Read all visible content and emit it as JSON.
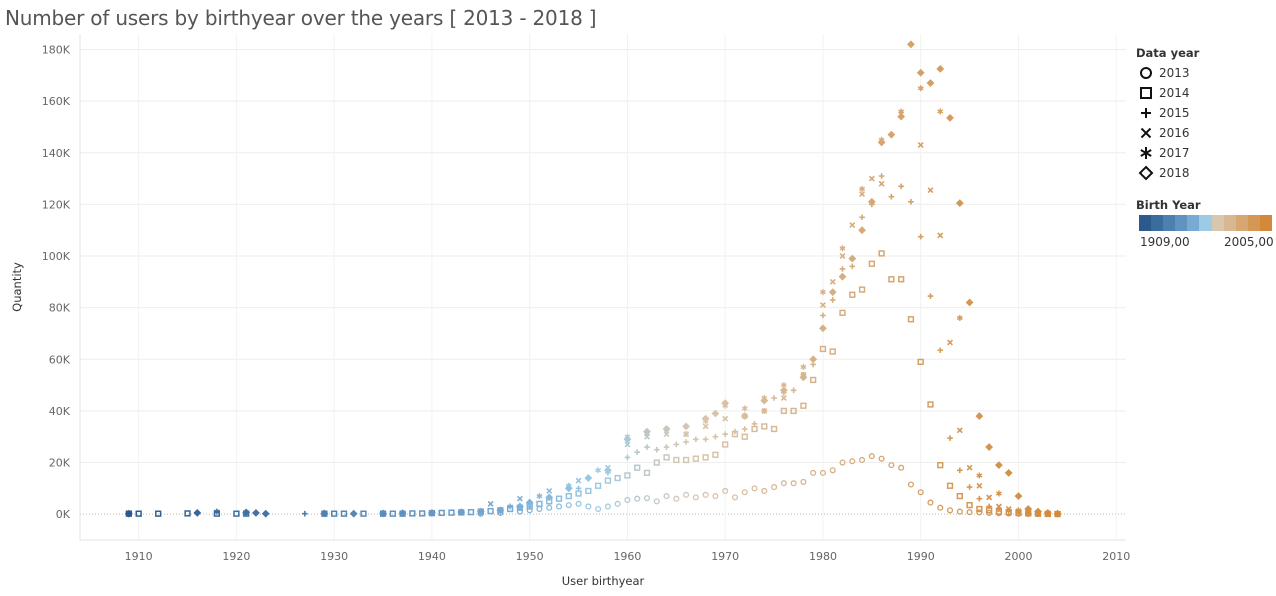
{
  "title": "Number of users by birthyear over the years [ 2013 - 2018 ]",
  "legend": {
    "shape_title": "Data year",
    "shapes": [
      {
        "label": "2013",
        "shape": "circle"
      },
      {
        "label": "2014",
        "shape": "square"
      },
      {
        "label": "2015",
        "shape": "plus"
      },
      {
        "label": "2016",
        "shape": "cross"
      },
      {
        "label": "2017",
        "shape": "asterisk"
      },
      {
        "label": "2018",
        "shape": "diamond"
      }
    ],
    "color_title": "Birth Year",
    "color_min_label": "1909,00",
    "color_max_label": "2005,00",
    "colors": [
      "#2b5a8c",
      "#3b6c9e",
      "#4d7fb0",
      "#6093c2",
      "#78aad4",
      "#9ccbe5",
      "#d9c6ae",
      "#d8b792",
      "#d6a773",
      "#d49754",
      "#d2893a"
    ]
  },
  "chart_data": {
    "type": "scatter",
    "title": "Number of users by birthyear over the years [ 2013 - 2018 ]",
    "xlabel": "User birthyear",
    "ylabel": "Quantity",
    "xlim": [
      1904,
      2011
    ],
    "ylim": [
      -10000,
      186000
    ],
    "xticks": [
      1910,
      1920,
      1930,
      1940,
      1950,
      1960,
      1970,
      1980,
      1990,
      2000,
      2010
    ],
    "yticks": [
      0,
      20000,
      40000,
      60000,
      80000,
      100000,
      120000,
      140000,
      160000,
      180000
    ],
    "ytick_labels": [
      "0K",
      "20K",
      "40K",
      "60K",
      "80K",
      "100K",
      "120K",
      "140K",
      "160K",
      "180K"
    ],
    "grid": true,
    "color_range": [
      1909,
      2005
    ],
    "series": [
      {
        "name": "2013",
        "shape": "circle",
        "x": [
          1945,
          1947,
          1949,
          1950,
          1951,
          1952,
          1953,
          1954,
          1955,
          1956,
          1957,
          1958,
          1959,
          1960,
          1961,
          1962,
          1963,
          1964,
          1965,
          1966,
          1967,
          1968,
          1969,
          1970,
          1971,
          1972,
          1973,
          1974,
          1975,
          1976,
          1977,
          1978,
          1979,
          1980,
          1981,
          1982,
          1983,
          1984,
          1985,
          1986,
          1987,
          1988,
          1989,
          1990,
          1991,
          1992,
          1993,
          1994,
          1995,
          1996,
          1997,
          1998,
          1999,
          2000,
          2001,
          2002,
          2003,
          2004
        ],
        "y": [
          200,
          500,
          1000,
          1500,
          2000,
          2500,
          3000,
          3500,
          4000,
          3000,
          2000,
          3000,
          4000,
          5500,
          6000,
          6200,
          5000,
          7000,
          6000,
          7500,
          6500,
          7500,
          7000,
          9000,
          6500,
          8500,
          10000,
          9000,
          10500,
          12000,
          12000,
          12500,
          16000,
          16000,
          17000,
          20000,
          20500,
          21000,
          22500,
          21500,
          19000,
          18000,
          11500,
          8500,
          4500,
          2500,
          1500,
          1000,
          800,
          700,
          500,
          400,
          300,
          200,
          150,
          100,
          100,
          50
        ]
      },
      {
        "name": "2014",
        "shape": "square",
        "x": [
          1909,
          1910,
          1912,
          1915,
          1918,
          1920,
          1921,
          1929,
          1930,
          1931,
          1933,
          1935,
          1936,
          1937,
          1938,
          1939,
          1940,
          1941,
          1942,
          1943,
          1944,
          1945,
          1946,
          1947,
          1948,
          1949,
          1950,
          1951,
          1952,
          1953,
          1954,
          1955,
          1956,
          1957,
          1958,
          1959,
          1960,
          1961,
          1962,
          1963,
          1964,
          1965,
          1966,
          1967,
          1968,
          1969,
          1970,
          1971,
          1972,
          1973,
          1974,
          1975,
          1976,
          1977,
          1978,
          1979,
          1980,
          1981,
          1982,
          1983,
          1984,
          1985,
          1986,
          1987,
          1988,
          1989,
          1990,
          1991,
          1992,
          1993,
          1994,
          1995,
          1996,
          1997,
          1998,
          1999,
          2000,
          2001,
          2002,
          2003,
          2004
        ],
        "y": [
          200,
          200,
          200,
          300,
          200,
          200,
          200,
          200,
          200,
          200,
          200,
          200,
          200,
          200,
          300,
          300,
          400,
          500,
          600,
          700,
          800,
          1000,
          1200,
          1500,
          2000,
          2500,
          3000,
          4000,
          5000,
          6000,
          7000,
          8000,
          9000,
          11000,
          13000,
          14000,
          15000,
          18000,
          16000,
          20000,
          22000,
          21000,
          21000,
          21500,
          22000,
          23000,
          27000,
          31000,
          30000,
          33000,
          34000,
          33000,
          40000,
          40000,
          42000,
          52000,
          64000,
          63000,
          78000,
          85000,
          87000,
          97000,
          101000,
          91000,
          91000,
          75500,
          59000,
          42500,
          19000,
          11000,
          7000,
          3500,
          2000,
          1500,
          1000,
          800,
          500,
          300,
          200,
          100,
          50
        ]
      },
      {
        "name": "2015",
        "shape": "plus",
        "x": [
          1927,
          1950,
          1955,
          1958,
          1960,
          1961,
          1962,
          1963,
          1964,
          1965,
          1966,
          1967,
          1968,
          1969,
          1970,
          1971,
          1972,
          1973,
          1974,
          1975,
          1976,
          1977,
          1978,
          1979,
          1980,
          1981,
          1982,
          1983,
          1984,
          1985,
          1986,
          1987,
          1988,
          1989,
          1990,
          1991,
          1992,
          1993,
          1994,
          1995,
          1996,
          1997,
          1998,
          1999,
          2000,
          2001,
          2002,
          2003
        ],
        "y": [
          200,
          3000,
          10000,
          16000,
          22000,
          24000,
          26000,
          25000,
          26000,
          27000,
          28000,
          29000,
          29000,
          30000,
          31000,
          32000,
          33000,
          35000,
          40000,
          45000,
          47000,
          48000,
          54000,
          58000,
          77000,
          83000,
          95000,
          96000,
          115000,
          120000,
          131000,
          123000,
          127000,
          121000,
          107500,
          84500,
          63500,
          29500,
          17000,
          10500,
          6000,
          3000,
          2000,
          1200,
          800,
          500,
          300,
          200
        ]
      },
      {
        "name": "2016",
        "shape": "cross",
        "x": [
          1946,
          1949,
          1952,
          1955,
          1958,
          1960,
          1962,
          1964,
          1966,
          1968,
          1970,
          1972,
          1974,
          1976,
          1978,
          1980,
          1981,
          1982,
          1983,
          1984,
          1985,
          1986,
          1988,
          1990,
          1991,
          1992,
          1993,
          1994,
          1995,
          1996,
          1997,
          1998,
          1999,
          2000,
          2001,
          2002,
          2003
        ],
        "y": [
          4000,
          6000,
          9000,
          13000,
          18000,
          27000,
          30000,
          31000,
          31000,
          34000,
          37000,
          38000,
          40000,
          45000,
          54000,
          81000,
          90000,
          100000,
          112000,
          124000,
          130000,
          128000,
          155000,
          143000,
          125500,
          108000,
          66500,
          32500,
          18000,
          11000,
          6500,
          3000,
          2000,
          1000,
          600,
          300,
          200
        ]
      },
      {
        "name": "2017",
        "shape": "asterisk",
        "x": [
          1918,
          1948,
          1951,
          1954,
          1957,
          1960,
          1962,
          1964,
          1966,
          1968,
          1970,
          1972,
          1974,
          1976,
          1978,
          1980,
          1982,
          1984,
          1986,
          1988,
          1990,
          1992,
          1994,
          1996,
          1998,
          2000,
          2002
        ],
        "y": [
          1000,
          3000,
          7000,
          11000,
          17000,
          30000,
          31000,
          33000,
          31000,
          36000,
          42000,
          41000,
          45000,
          50000,
          57000,
          86000,
          103000,
          126000,
          145000,
          156000,
          165000,
          156000,
          76000,
          15000,
          8000,
          1500,
          300
        ]
      },
      {
        "name": "2018",
        "shape": "diamond",
        "x": [
          1909,
          1916,
          1921,
          1922,
          1923,
          1929,
          1932,
          1935,
          1937,
          1940,
          1943,
          1945,
          1947,
          1949,
          1950,
          1952,
          1954,
          1956,
          1958,
          1960,
          1962,
          1964,
          1966,
          1968,
          1969,
          1970,
          1972,
          1974,
          1976,
          1978,
          1979,
          1980,
          1981,
          1982,
          1983,
          1984,
          1985,
          1986,
          1987,
          1988,
          1989,
          1990,
          1991,
          1992,
          1993,
          1994,
          1995,
          1996,
          1997,
          1998,
          1999,
          2000,
          2001,
          2002,
          2003,
          2004
        ],
        "y": [
          200,
          500,
          700,
          500,
          200,
          300,
          200,
          300,
          400,
          500,
          800,
          1000,
          1500,
          3000,
          4500,
          6500,
          10000,
          14000,
          17000,
          29000,
          32000,
          33000,
          34000,
          37000,
          39000,
          43000,
          38000,
          44000,
          48000,
          53000,
          60000,
          72000,
          86000,
          92000,
          99000,
          110000,
          121000,
          144000,
          147000,
          154000,
          182000,
          171000,
          167000,
          172500,
          153500,
          120500,
          82000,
          38000,
          26000,
          19000,
          16000,
          7000,
          2000,
          1000,
          500,
          200
        ]
      }
    ]
  }
}
